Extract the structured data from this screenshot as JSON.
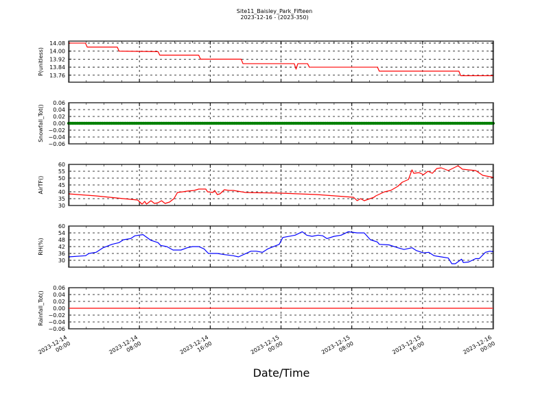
{
  "title": "Site11_Baisley_Park_Fifteen",
  "subtitle": "2023-12-16 - (2023-350)",
  "chart_data": {
    "type": "line",
    "xlabel": "Date/Time",
    "xlim": [
      "2023-12-14 00:00",
      "2023-12-16 00:00"
    ],
    "xticks": [
      {
        "date": "2023-12-14",
        "time": "00:00",
        "at": "2023-12-14 00:00"
      },
      {
        "date": "2023-12-14",
        "time": "08:00",
        "at": "2023-12-14 08:00"
      },
      {
        "date": "2023-12-14",
        "time": "16:00",
        "at": "2023-12-14 16:00"
      },
      {
        "date": "2023-12-15",
        "time": "00:00",
        "at": "2023-12-15 00:00"
      },
      {
        "date": "2023-12-15",
        "time": "08:00",
        "at": "2023-12-15 08:00"
      },
      {
        "date": "2023-12-15",
        "time": "16:00",
        "at": "2023-12-15 16:00"
      },
      {
        "date": "2023-12-16",
        "time": "00:00",
        "at": "2023-12-16 00:00"
      }
    ],
    "grid": true,
    "panels": [
      {
        "ylabel": "P(unitless)",
        "color": "#ff0000",
        "style": "line",
        "ylim": [
          13.69,
          14.1
        ],
        "yticks": [
          "14.08",
          "14.00",
          "13.92",
          "13.84",
          "13.76"
        ],
        "points": [
          [
            "2023-12-14 00:00",
            14.08
          ],
          [
            "2023-12-14 01:54",
            14.08
          ],
          [
            "2023-12-14 02:06",
            14.04
          ],
          [
            "2023-12-14 05:30",
            14.04
          ],
          [
            "2023-12-14 05:42",
            14.0
          ],
          [
            "2023-12-14 10:06",
            13.995
          ],
          [
            "2023-12-14 10:18",
            13.96
          ],
          [
            "2023-12-14 14:42",
            13.96
          ],
          [
            "2023-12-14 14:54",
            13.92
          ],
          [
            "2023-12-14 19:30",
            13.92
          ],
          [
            "2023-12-14 19:42",
            13.875
          ],
          [
            "2023-12-15 01:30",
            13.875
          ],
          [
            "2023-12-15 01:42",
            13.82
          ],
          [
            "2023-12-15 01:54",
            13.875
          ],
          [
            "2023-12-15 03:00",
            13.875
          ],
          [
            "2023-12-15 03:12",
            13.84
          ],
          [
            "2023-12-15 10:54",
            13.84
          ],
          [
            "2023-12-15 11:06",
            13.8
          ],
          [
            "2023-12-15 20:06",
            13.8
          ],
          [
            "2023-12-15 20:18",
            13.755
          ],
          [
            "2023-12-16 00:00",
            13.755
          ]
        ]
      },
      {
        "ylabel": "Snowfall_Tot()",
        "color": "#008000",
        "style": "markers",
        "ylim": [
          -0.06,
          0.06
        ],
        "yticks": [
          "0.06",
          "0.04",
          "0.02",
          "0.00",
          "−0.02",
          "−0.04",
          "−0.06"
        ],
        "points": [
          [
            "2023-12-14 00:00",
            0
          ],
          [
            "2023-12-16 00:00",
            0
          ]
        ]
      },
      {
        "ylabel": "AirTF()",
        "color": "#ff0000",
        "style": "line",
        "ylim": [
          30,
          60
        ],
        "yticks": [
          "60",
          "55",
          "50",
          "45",
          "40",
          "35",
          "30"
        ],
        "points": [
          [
            "2023-12-14 00:00",
            38.5
          ],
          [
            "2023-12-14 03:06",
            37
          ],
          [
            "2023-12-14 06:12",
            35
          ],
          [
            "2023-12-14 07:48",
            34
          ],
          [
            "2023-12-14 08:18",
            31
          ],
          [
            "2023-12-14 08:36",
            33
          ],
          [
            "2023-12-14 08:48",
            31
          ],
          [
            "2023-12-14 09:18",
            33.5
          ],
          [
            "2023-12-14 09:42",
            31.5
          ],
          [
            "2023-12-14 10:06",
            32
          ],
          [
            "2023-12-14 10:30",
            33.5
          ],
          [
            "2023-12-14 10:54",
            31.5
          ],
          [
            "2023-12-14 11:24",
            32.5
          ],
          [
            "2023-12-14 11:54",
            35
          ],
          [
            "2023-12-14 12:18",
            39.5
          ],
          [
            "2023-12-14 12:54",
            40
          ],
          [
            "2023-12-14 13:24",
            40.5
          ],
          [
            "2023-12-14 14:12",
            41
          ],
          [
            "2023-12-14 14:42",
            42
          ],
          [
            "2023-12-14 15:30",
            42
          ],
          [
            "2023-12-14 15:42",
            40
          ],
          [
            "2023-12-14 16:18",
            39.5
          ],
          [
            "2023-12-14 16:30",
            41
          ],
          [
            "2023-12-14 16:48",
            38
          ],
          [
            "2023-12-14 17:06",
            38.5
          ],
          [
            "2023-12-14 17:36",
            41.5
          ],
          [
            "2023-12-14 18:06",
            41
          ],
          [
            "2023-12-14 18:36",
            41
          ],
          [
            "2023-12-14 20:00",
            39.5
          ],
          [
            "2023-12-15 00:00",
            39
          ],
          [
            "2023-12-15 04:00",
            38
          ],
          [
            "2023-12-15 08:12",
            36
          ],
          [
            "2023-12-15 08:36",
            33.5
          ],
          [
            "2023-12-15 09:00",
            35
          ],
          [
            "2023-12-15 09:24",
            33.5
          ],
          [
            "2023-12-15 10:30",
            36
          ],
          [
            "2023-12-15 10:42",
            37
          ],
          [
            "2023-12-15 11:42",
            40
          ],
          [
            "2023-12-15 12:24",
            41
          ],
          [
            "2023-12-15 13:12",
            44
          ],
          [
            "2023-12-15 13:42",
            47
          ],
          [
            "2023-12-15 14:24",
            49
          ],
          [
            "2023-12-15 14:48",
            56
          ],
          [
            "2023-12-15 15:00",
            53.5
          ],
          [
            "2023-12-15 15:36",
            54
          ],
          [
            "2023-12-15 16:06",
            52.5
          ],
          [
            "2023-12-15 16:36",
            55
          ],
          [
            "2023-12-15 17:06",
            53.5
          ],
          [
            "2023-12-15 17:36",
            57
          ],
          [
            "2023-12-15 18:06",
            57.5
          ],
          [
            "2023-12-15 18:54",
            55.5
          ],
          [
            "2023-12-15 20:00",
            59
          ],
          [
            "2023-12-15 20:30",
            56.5
          ],
          [
            "2023-12-15 21:12",
            56
          ],
          [
            "2023-12-15 22:00",
            55.5
          ],
          [
            "2023-12-15 22:48",
            52
          ],
          [
            "2023-12-16 00:00",
            50.5
          ]
        ]
      },
      {
        "ylabel": "RH(%)",
        "color": "#0000ff",
        "style": "line",
        "ylim": [
          24,
          60
        ],
        "yticks": [
          "60",
          "54",
          "48",
          "42",
          "36",
          "30"
        ],
        "points": [
          [
            "2023-12-14 00:00",
            33
          ],
          [
            "2023-12-14 01:54",
            34
          ],
          [
            "2023-12-14 02:18",
            36
          ],
          [
            "2023-12-14 03:06",
            37
          ],
          [
            "2023-12-14 03:54",
            41
          ],
          [
            "2023-12-14 04:54",
            44
          ],
          [
            "2023-12-14 05:42",
            45.5
          ],
          [
            "2023-12-14 06:12",
            48
          ],
          [
            "2023-12-14 07:00",
            49
          ],
          [
            "2023-12-14 07:30",
            51.5
          ],
          [
            "2023-12-14 08:24",
            52.5
          ],
          [
            "2023-12-14 09:18",
            47.5
          ],
          [
            "2023-12-14 10:06",
            45.5
          ],
          [
            "2023-12-14 10:24",
            43
          ],
          [
            "2023-12-14 11:06",
            42
          ],
          [
            "2023-12-14 11:48",
            39
          ],
          [
            "2023-12-14 12:42",
            39
          ],
          [
            "2023-12-14 13:24",
            41
          ],
          [
            "2023-12-14 14:00",
            42
          ],
          [
            "2023-12-14 14:42",
            42
          ],
          [
            "2023-12-14 15:18",
            40
          ],
          [
            "2023-12-14 15:48",
            36
          ],
          [
            "2023-12-14 16:48",
            36
          ],
          [
            "2023-12-14 17:36",
            35
          ],
          [
            "2023-12-14 18:36",
            34
          ],
          [
            "2023-12-14 19:12",
            33
          ],
          [
            "2023-12-14 20:36",
            38
          ],
          [
            "2023-12-14 21:12",
            38
          ],
          [
            "2023-12-14 21:54",
            37
          ],
          [
            "2023-12-14 22:30",
            40
          ],
          [
            "2023-12-14 23:48",
            44
          ],
          [
            "2023-12-15 00:12",
            50
          ],
          [
            "2023-12-15 01:36",
            52
          ],
          [
            "2023-12-15 02:24",
            55
          ],
          [
            "2023-12-15 02:54",
            52
          ],
          [
            "2023-12-15 03:30",
            51
          ],
          [
            "2023-12-15 04:12",
            52
          ],
          [
            "2023-12-15 04:42",
            51.5
          ],
          [
            "2023-12-15 05:12",
            49
          ],
          [
            "2023-12-15 06:00",
            51
          ],
          [
            "2023-12-15 06:48",
            52
          ],
          [
            "2023-12-15 07:36",
            55
          ],
          [
            "2023-12-15 08:36",
            54
          ],
          [
            "2023-12-15 09:24",
            54
          ],
          [
            "2023-12-15 10:06",
            48
          ],
          [
            "2023-12-15 10:54",
            46
          ],
          [
            "2023-12-15 11:06",
            44
          ],
          [
            "2023-12-15 12:12",
            43.5
          ],
          [
            "2023-12-15 13:12",
            41
          ],
          [
            "2023-12-15 13:54",
            39.5
          ],
          [
            "2023-12-15 14:48",
            41
          ],
          [
            "2023-12-15 15:18",
            38.5
          ],
          [
            "2023-12-15 16:06",
            36.5
          ],
          [
            "2023-12-15 16:42",
            37
          ],
          [
            "2023-12-15 17:18",
            34
          ],
          [
            "2023-12-15 18:06",
            33
          ],
          [
            "2023-12-15 18:54",
            32
          ],
          [
            "2023-12-15 19:18",
            27
          ],
          [
            "2023-12-15 19:42",
            27
          ],
          [
            "2023-12-15 20:24",
            31
          ],
          [
            "2023-12-15 20:36",
            28
          ],
          [
            "2023-12-15 21:12",
            28.5
          ],
          [
            "2023-12-15 22:00",
            31.5
          ],
          [
            "2023-12-15 22:24",
            31.5
          ],
          [
            "2023-12-15 23:06",
            37
          ],
          [
            "2023-12-15 23:36",
            38
          ],
          [
            "2023-12-16 00:00",
            37.5
          ]
        ]
      },
      {
        "ylabel": "Rainfall_Tot()",
        "color": "#ff0000",
        "style": "line",
        "ylim": [
          -0.06,
          0.06
        ],
        "yticks": [
          "0.06",
          "0.04",
          "0.02",
          "0.00",
          "−0.02",
          "−0.04",
          "−0.06"
        ],
        "points": [
          [
            "2023-12-14 00:00",
            0
          ],
          [
            "2023-12-16 00:00",
            0
          ]
        ]
      }
    ]
  }
}
